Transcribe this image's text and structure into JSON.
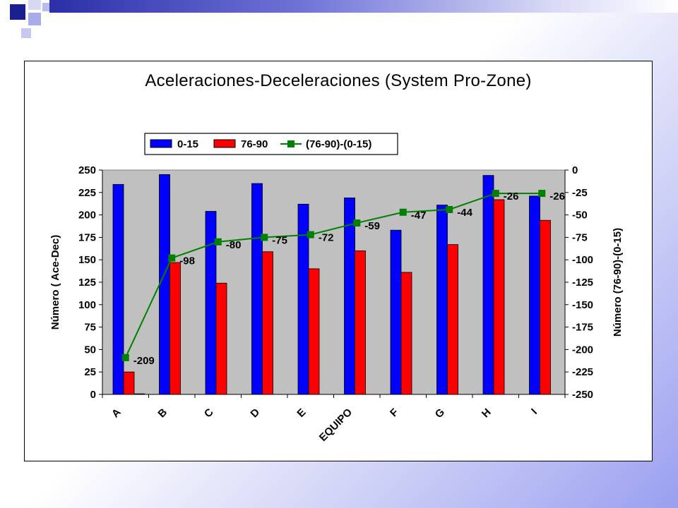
{
  "colors": {
    "bar_first": "#0000ff",
    "bar_last": "#ff0000",
    "diff_line": "#008000",
    "plot_bg": "#c0c0c0"
  },
  "chart_data": {
    "type": "bar",
    "title": "Aceleraciones-Deceleraciones (System Pro-Zone)",
    "categories": [
      "A",
      "B",
      "C",
      "D",
      "E",
      "EQUIPO",
      "F",
      "G",
      "H",
      "I"
    ],
    "series": [
      {
        "name": "0-15",
        "type": "bar",
        "axis": "left",
        "values": [
          234,
          245,
          204,
          235,
          212,
          219,
          183,
          211,
          244,
          221
        ]
      },
      {
        "name": "76-90",
        "type": "bar",
        "axis": "left",
        "values": [
          25,
          147,
          124,
          159,
          140,
          160,
          136,
          167,
          217,
          194
        ]
      },
      {
        "name": "(76-90)-(0-15)",
        "type": "line",
        "axis": "right",
        "values": [
          -209,
          -98,
          -80,
          -75,
          -72,
          -59,
          -47,
          -44,
          -26,
          -26
        ],
        "labels": [
          "-209",
          "-98",
          "-80",
          "-75",
          "-72",
          "-59",
          "-47",
          "-44",
          "-26",
          "-26"
        ]
      }
    ],
    "extra_bar_in_first_group": 1,
    "ylabel": "Número ( Ace-Dec)",
    "y2label": "Número (76-90)-(0-15)",
    "ylim": [
      0,
      250
    ],
    "y2lim": [
      -250,
      0
    ],
    "yticks": [
      "0",
      "25",
      "50",
      "75",
      "100",
      "125",
      "150",
      "175",
      "200",
      "225",
      "250"
    ],
    "y2ticks": [
      "-250",
      "-225",
      "-200",
      "-175",
      "-150",
      "-125",
      "-100",
      "-75",
      "-50",
      "-25",
      "0"
    ],
    "legend_position": "top",
    "grid": false
  }
}
